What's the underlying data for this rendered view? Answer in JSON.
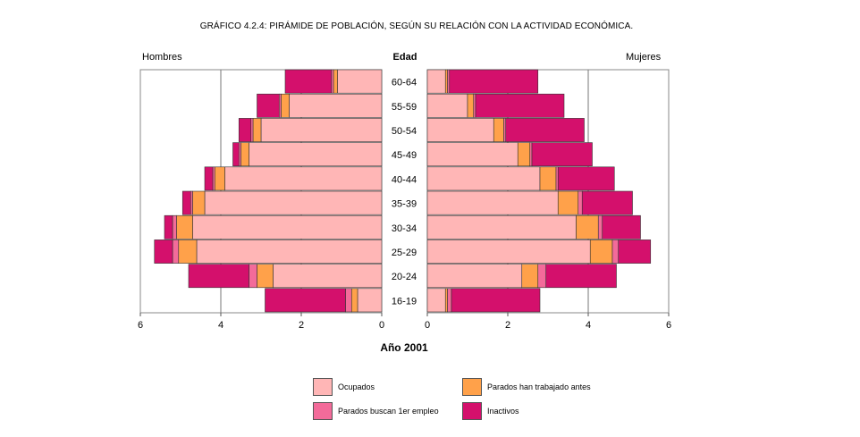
{
  "title": "GRÁFICO 4.2.4: PIRÁMIDE DE POBLACIÓN, SEGÚN SU RELACIÓN CON LA ACTIVIDAD ECONÓMICA.",
  "left_label": "Hombres",
  "right_label": "Mujeres",
  "age_axis_title": "Edad",
  "year_label": "Año 2001",
  "colors": {
    "ocupados": "#ffb6b6",
    "parados_antes": "#ffa14a",
    "parados_primer": "#f36b9a",
    "inactivos": "#d4106c"
  },
  "legend": [
    {
      "key": "ocupados",
      "label": "Ocupados"
    },
    {
      "key": "parados_antes",
      "label": "Parados han trabajado antes"
    },
    {
      "key": "parados_primer",
      "label": "Parados buscan 1er empleo"
    },
    {
      "key": "inactivos",
      "label": "Inactivos"
    }
  ],
  "chart_data": {
    "type": "bar",
    "subtype": "population-pyramid-stacked",
    "categories": [
      "60-64",
      "55-59",
      "50-54",
      "45-49",
      "40-44",
      "35-39",
      "30-34",
      "25-29",
      "20-24",
      "16-19"
    ],
    "xlim": [
      0,
      6
    ],
    "x_ticks": [
      "0",
      "2",
      "4",
      "6"
    ],
    "grid": true,
    "men": {
      "label": "Hombres",
      "series": [
        {
          "name": "Ocupados",
          "key": "ocupados",
          "values": [
            1.1,
            2.3,
            3.0,
            3.3,
            3.9,
            4.4,
            4.7,
            4.6,
            2.7,
            0.6
          ]
        },
        {
          "name": "Parados han trabajado antes",
          "key": "parados_antes",
          "values": [
            0.1,
            0.2,
            0.2,
            0.2,
            0.25,
            0.3,
            0.4,
            0.45,
            0.4,
            0.15
          ]
        },
        {
          "name": "Parados buscan 1er empleo",
          "key": "parados_primer",
          "values": [
            0.05,
            0.05,
            0.05,
            0.05,
            0.05,
            0.05,
            0.1,
            0.15,
            0.2,
            0.15
          ]
        },
        {
          "name": "Inactivos",
          "key": "inactivos",
          "values": [
            1.15,
            0.55,
            0.3,
            0.15,
            0.2,
            0.2,
            0.2,
            0.45,
            1.5,
            2.0
          ]
        }
      ]
    },
    "women": {
      "label": "Mujeres",
      "series": [
        {
          "name": "Ocupados",
          "key": "ocupados",
          "values": [
            0.45,
            1.0,
            1.65,
            2.25,
            2.8,
            3.25,
            3.7,
            4.05,
            2.35,
            0.45
          ]
        },
        {
          "name": "Parados han trabajado antes",
          "key": "parados_antes",
          "values": [
            0.05,
            0.15,
            0.25,
            0.3,
            0.4,
            0.5,
            0.55,
            0.55,
            0.4,
            0.05
          ]
        },
        {
          "name": "Parados buscan 1er empleo",
          "key": "parados_primer",
          "values": [
            0.05,
            0.05,
            0.05,
            0.05,
            0.05,
            0.1,
            0.1,
            0.15,
            0.2,
            0.1
          ]
        },
        {
          "name": "Inactivos",
          "key": "inactivos",
          "values": [
            2.2,
            2.2,
            1.95,
            1.5,
            1.4,
            1.25,
            0.95,
            0.8,
            1.75,
            2.2
          ]
        }
      ]
    }
  }
}
